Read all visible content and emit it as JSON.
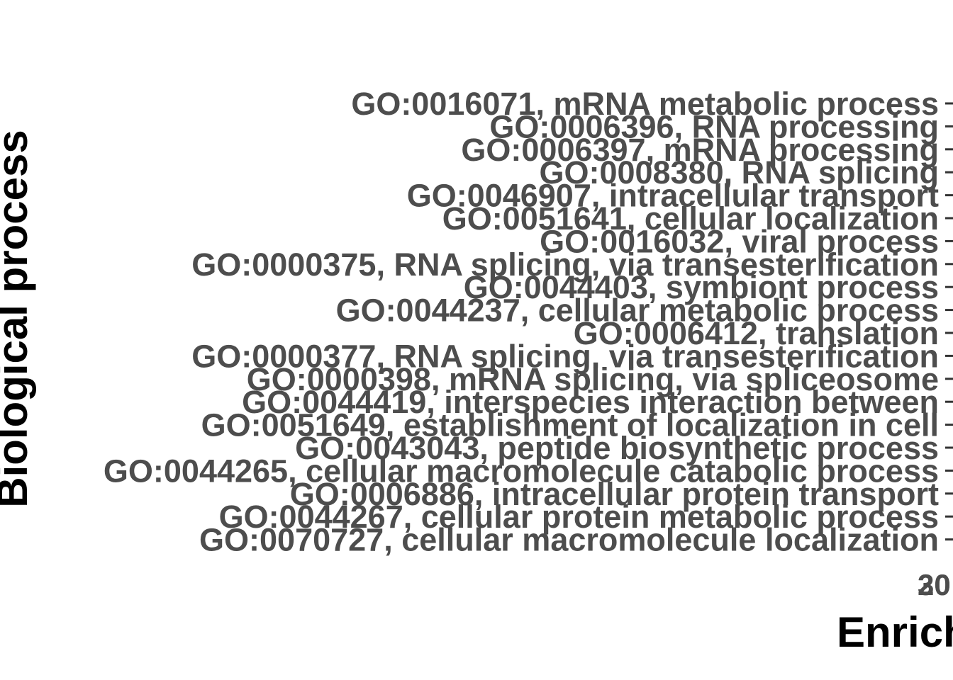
{
  "chart_data": {
    "type": "bar",
    "orientation": "horizontal",
    "ylabel": "Biological process",
    "xlabel": "Enrich",
    "categories": [
      "GO:0016071, mRNA metabolic process",
      "GO:0006396, RNA processing",
      "GO:0006397, mRNA processing",
      "GO:0008380, RNA splicing",
      "GO:0046907, intracellular transport",
      "GO:0051641, cellular localization",
      "GO:0016032, viral process",
      "GO:0000375, RNA splicing, via transesterification",
      "GO:0044403, symbiont process",
      "GO:0044237, cellular metabolic process",
      "GO:0006412, translation",
      "GO:0000377, RNA splicing, via transesterification",
      "GO:0000398, mRNA splicing, via spliceosome",
      "GO:0044419, interspecies interaction between",
      "GO:0051649, establishment of localization in cell",
      "GO:0043043, peptide biosynthetic process",
      "GO:0044265, cellular macromolecule catabolic process",
      "GO:0006886, intracellular protein transport",
      "GO:0044267, cellular protein metabolic process",
      "GO:0070727, cellular macromolecule localization"
    ],
    "x_ticks": [
      "20",
      "30"
    ],
    "legend": "none",
    "grid": false
  }
}
